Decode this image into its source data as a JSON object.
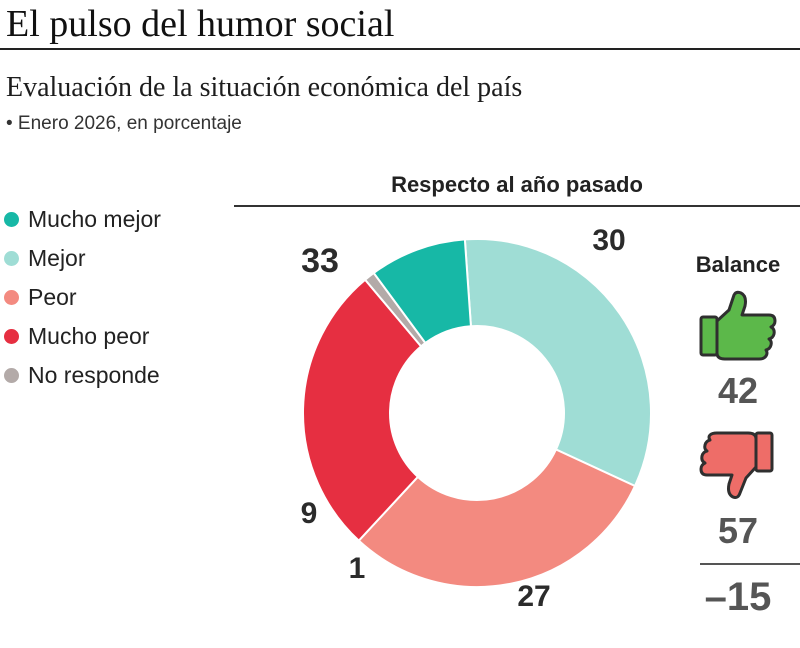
{
  "header": {
    "title": "El pulso del humor social",
    "subtitle": "Evaluación de la situación económica del país",
    "note": "• Enero 2026, en porcentaje"
  },
  "legend": [
    {
      "label": "Mucho mejor",
      "color": "#17b8a6"
    },
    {
      "label": "Mejor",
      "color": "#9fddd5"
    },
    {
      "label": "Peor",
      "color": "#f38a80"
    },
    {
      "label": "Mucho peor",
      "color": "#e62f41"
    },
    {
      "label": "No responde",
      "color": "#b3aaa8"
    }
  ],
  "chart_data": {
    "type": "pie",
    "variant": "donut",
    "title": "Respecto al año pasado",
    "categories": [
      "Mejor",
      "Peor",
      "Mucho peor",
      "No responde",
      "Mucho mejor"
    ],
    "values": [
      33,
      30,
      27,
      1,
      9
    ],
    "colors": [
      "#9fddd5",
      "#f38a80",
      "#e62f41",
      "#b3aaa8",
      "#17b8a6"
    ],
    "labels": [
      "33",
      "30",
      "27",
      "1",
      "9"
    ]
  },
  "balance": {
    "title": "Balance",
    "positive": "42",
    "negative": "57",
    "net": "–15",
    "positive_icon": "thumbs-up-icon",
    "negative_icon": "thumbs-down-icon",
    "positive_color": "#5cb84a",
    "negative_color": "#ee6d68"
  }
}
